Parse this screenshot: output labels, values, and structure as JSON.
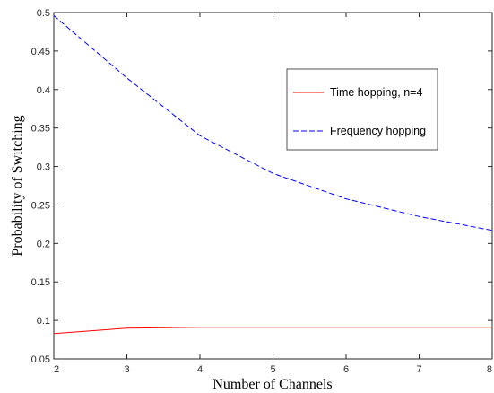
{
  "chart_data": {
    "type": "line",
    "x": [
      2,
      3,
      4,
      5,
      6,
      7,
      8
    ],
    "series": [
      {
        "name": "Time hopping, n=4",
        "values": [
          0.083,
          0.09,
          0.091,
          0.091,
          0.091,
          0.091,
          0.091
        ],
        "color": "#ff0000",
        "line_style": "solid"
      },
      {
        "name": "Frequency hopping",
        "values": [
          0.496,
          0.415,
          0.34,
          0.291,
          0.258,
          0.235,
          0.217
        ],
        "color": "#0000ff",
        "line_style": "dashed"
      }
    ],
    "xlabel": "Number of Channels",
    "ylabel": "Probability of Switching",
    "xlim": [
      2,
      8
    ],
    "ylim": [
      0.05,
      0.5
    ],
    "xticks": [
      "2",
      "3",
      "4",
      "5",
      "6",
      "7",
      "8"
    ],
    "yticks": [
      "0.05",
      "0.1",
      "0.15",
      "0.2",
      "0.25",
      "0.3",
      "0.35",
      "0.4",
      "0.45",
      "0.5"
    ],
    "grid": false,
    "legend_position": "right"
  }
}
